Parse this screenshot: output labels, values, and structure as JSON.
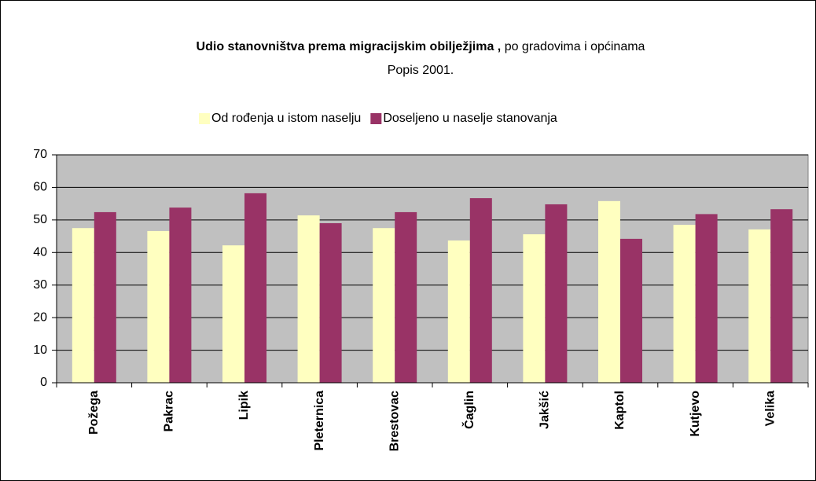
{
  "chart_data": {
    "type": "bar",
    "title_bold": "Udio stanovništva prema migracijskim obilježjima ,",
    "title_rest": "po gradovima i općinama",
    "subtitle": "Popis 2001.",
    "categories": [
      "Požega",
      "Pakrac",
      "Lipik",
      "Pleternica",
      "Brestovac",
      "Čaglin",
      "Jakšić",
      "Kaptol",
      "Kutjevo",
      "Velika"
    ],
    "series": [
      {
        "name": "Od rođenja u istom naselju",
        "color": "#ffffc0",
        "values": [
          47.5,
          46.6,
          42.2,
          51.4,
          47.5,
          43.7,
          45.6,
          55.8,
          48.5,
          47.1
        ]
      },
      {
        "name": "Doseljeno u naselje stanovanja",
        "color": "#993366",
        "values": [
          52.4,
          53.8,
          58.2,
          49.0,
          52.4,
          56.7,
          54.8,
          44.2,
          51.8,
          53.3
        ]
      }
    ],
    "ylim": [
      0,
      70
    ],
    "yticks": [
      0,
      10,
      20,
      30,
      40,
      50,
      60,
      70
    ],
    "grid": true,
    "legend": "top"
  }
}
